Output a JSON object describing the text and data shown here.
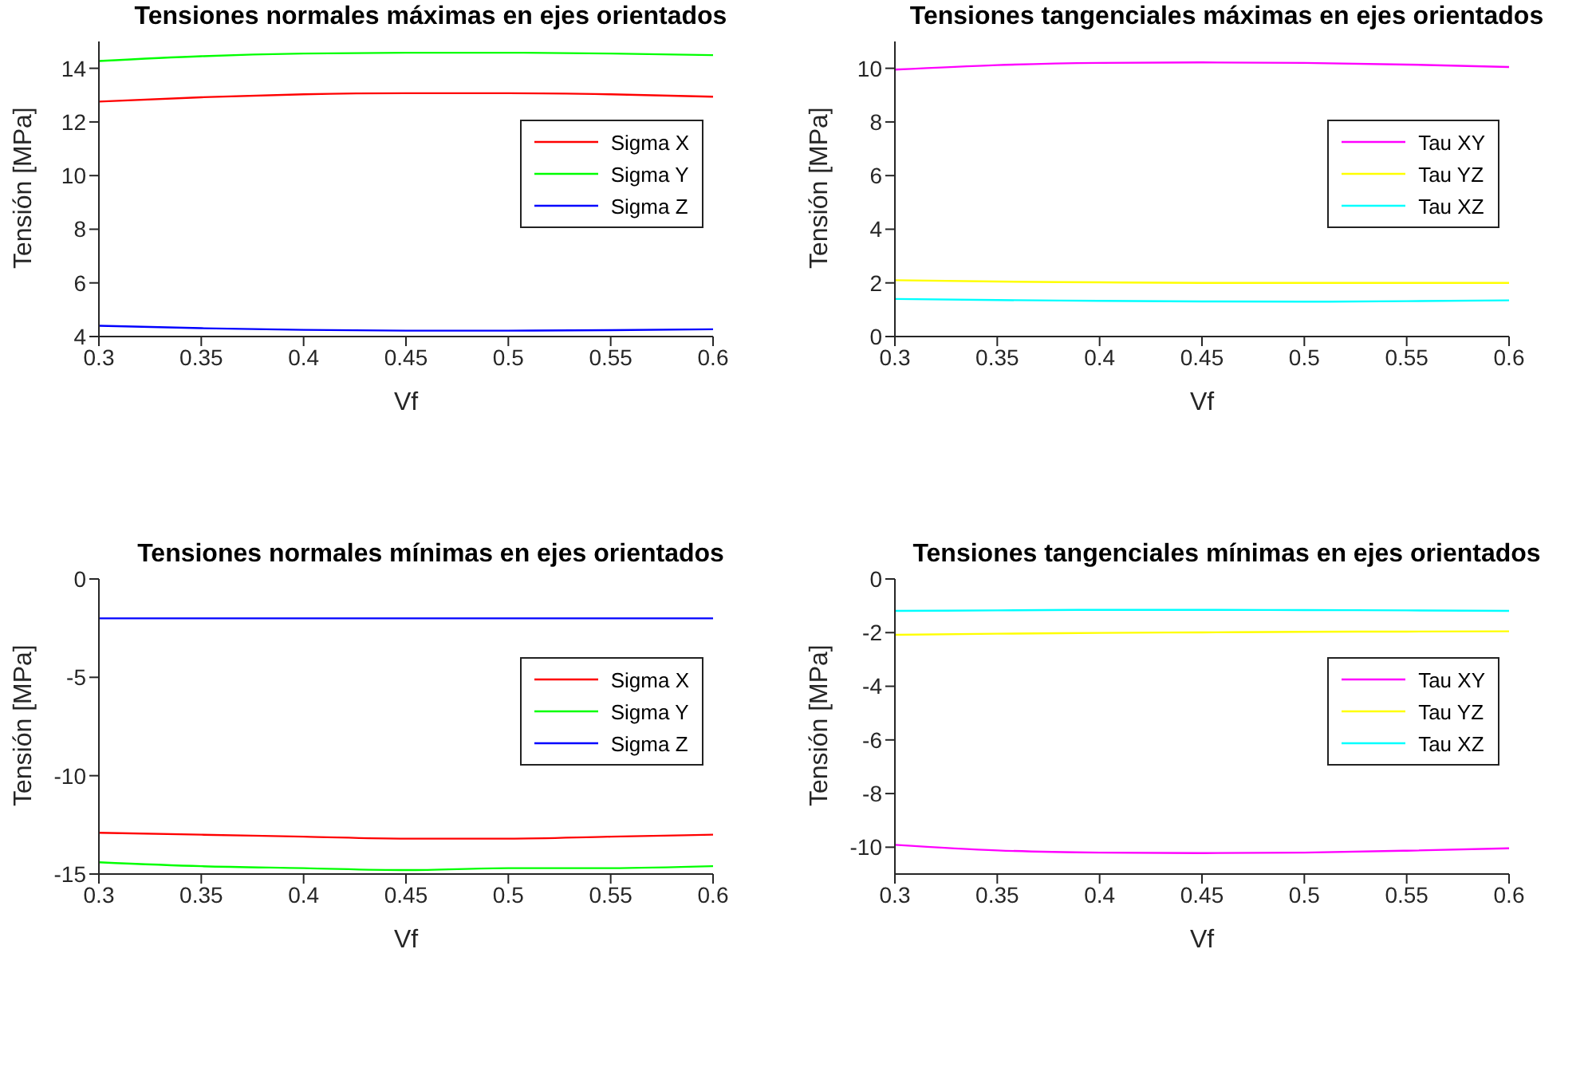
{
  "chart_data": [
    {
      "type": "line",
      "title": "Tensiones normales máximas en ejes orientados",
      "xlabel": "Vf",
      "ylabel": "Tensión [MPa]",
      "x": [
        0.3,
        0.35,
        0.4,
        0.45,
        0.5,
        0.55,
        0.6
      ],
      "xlim": [
        0.3,
        0.6
      ],
      "xticks": [
        0.3,
        0.35,
        0.4,
        0.45,
        0.5,
        0.55,
        0.6
      ],
      "ylim": [
        4,
        15
      ],
      "yticks": [
        4,
        6,
        8,
        10,
        12,
        14
      ],
      "legend": "top right",
      "grid": false,
      "marker": "none",
      "series": [
        {
          "name": "Sigma X",
          "color": "#ff0000",
          "values": [
            12.76,
            12.92,
            13.03,
            13.07,
            13.07,
            13.03,
            12.94
          ]
        },
        {
          "name": "Sigma Y",
          "color": "#00ff00",
          "values": [
            14.27,
            14.45,
            14.55,
            14.58,
            14.58,
            14.55,
            14.49
          ]
        },
        {
          "name": "Sigma Z",
          "color": "#0000ff",
          "values": [
            4.4,
            4.31,
            4.25,
            4.22,
            4.22,
            4.24,
            4.27
          ]
        }
      ]
    },
    {
      "type": "line",
      "title": "Tensiones tangenciales máximas en ejes orientados",
      "xlabel": "Vf",
      "ylabel": "Tensión [MPa]",
      "x": [
        0.3,
        0.35,
        0.4,
        0.45,
        0.5,
        0.55,
        0.6
      ],
      "xlim": [
        0.3,
        0.6
      ],
      "xticks": [
        0.3,
        0.35,
        0.4,
        0.45,
        0.5,
        0.55,
        0.6
      ],
      "ylim": [
        0,
        11
      ],
      "yticks": [
        0,
        2,
        4,
        6,
        8,
        10
      ],
      "legend": "top right",
      "grid": false,
      "marker": "none",
      "series": [
        {
          "name": "Tau XY",
          "color": "#ff00ff",
          "values": [
            9.95,
            10.12,
            10.2,
            10.22,
            10.2,
            10.14,
            10.05
          ]
        },
        {
          "name": "Tau YZ",
          "color": "#ffff00",
          "values": [
            2.1,
            2.05,
            2.02,
            2.0,
            2.0,
            2.0,
            2.0
          ]
        },
        {
          "name": "Tau XZ",
          "color": "#00ffff",
          "values": [
            1.4,
            1.36,
            1.33,
            1.31,
            1.3,
            1.32,
            1.35
          ]
        }
      ]
    },
    {
      "type": "line",
      "title": "Tensiones normales mínimas en ejes orientados",
      "xlabel": "Vf",
      "ylabel": "Tensión [MPa]",
      "x": [
        0.3,
        0.35,
        0.4,
        0.45,
        0.5,
        0.55,
        0.6
      ],
      "xlim": [
        0.3,
        0.6
      ],
      "xticks": [
        0.3,
        0.35,
        0.4,
        0.45,
        0.5,
        0.55,
        0.6
      ],
      "ylim": [
        -15,
        0
      ],
      "yticks": [
        -15,
        -10,
        -5,
        0
      ],
      "legend": "top right",
      "grid": false,
      "marker": "none",
      "series": [
        {
          "name": "Sigma X",
          "color": "#ff0000",
          "values": [
            -12.9,
            -13.0,
            -13.1,
            -13.2,
            -13.2,
            -13.1,
            -13.0
          ]
        },
        {
          "name": "Sigma Y",
          "color": "#00ff00",
          "values": [
            -14.4,
            -14.6,
            -14.7,
            -14.8,
            -14.7,
            -14.7,
            -14.6
          ]
        },
        {
          "name": "Sigma Z",
          "color": "#0000ff",
          "values": [
            -2.0,
            -2.0,
            -2.0,
            -2.0,
            -2.0,
            -2.0,
            -2.0
          ]
        }
      ]
    },
    {
      "type": "line",
      "title": "Tensiones tangenciales mínimas en ejes orientados",
      "xlabel": "Vf",
      "ylabel": "Tensión [MPa]",
      "x": [
        0.3,
        0.35,
        0.4,
        0.45,
        0.5,
        0.55,
        0.6
      ],
      "xlim": [
        0.3,
        0.6
      ],
      "xticks": [
        0.3,
        0.35,
        0.4,
        0.45,
        0.5,
        0.55,
        0.6
      ],
      "ylim": [
        -11,
        0
      ],
      "yticks": [
        -10,
        -8,
        -6,
        -4,
        -2,
        0
      ],
      "legend": "top right",
      "grid": false,
      "marker": "none",
      "series": [
        {
          "name": "Tau XY",
          "color": "#ff00ff",
          "values": [
            -9.91,
            -10.12,
            -10.2,
            -10.22,
            -10.2,
            -10.13,
            -10.04
          ]
        },
        {
          "name": "Tau YZ",
          "color": "#ffff00",
          "values": [
            -2.08,
            -2.04,
            -2.01,
            -1.99,
            -1.97,
            -1.96,
            -1.95
          ]
        },
        {
          "name": "Tau XZ",
          "color": "#00ffff",
          "values": [
            -1.19,
            -1.17,
            -1.15,
            -1.15,
            -1.16,
            -1.17,
            -1.19
          ]
        }
      ]
    }
  ]
}
